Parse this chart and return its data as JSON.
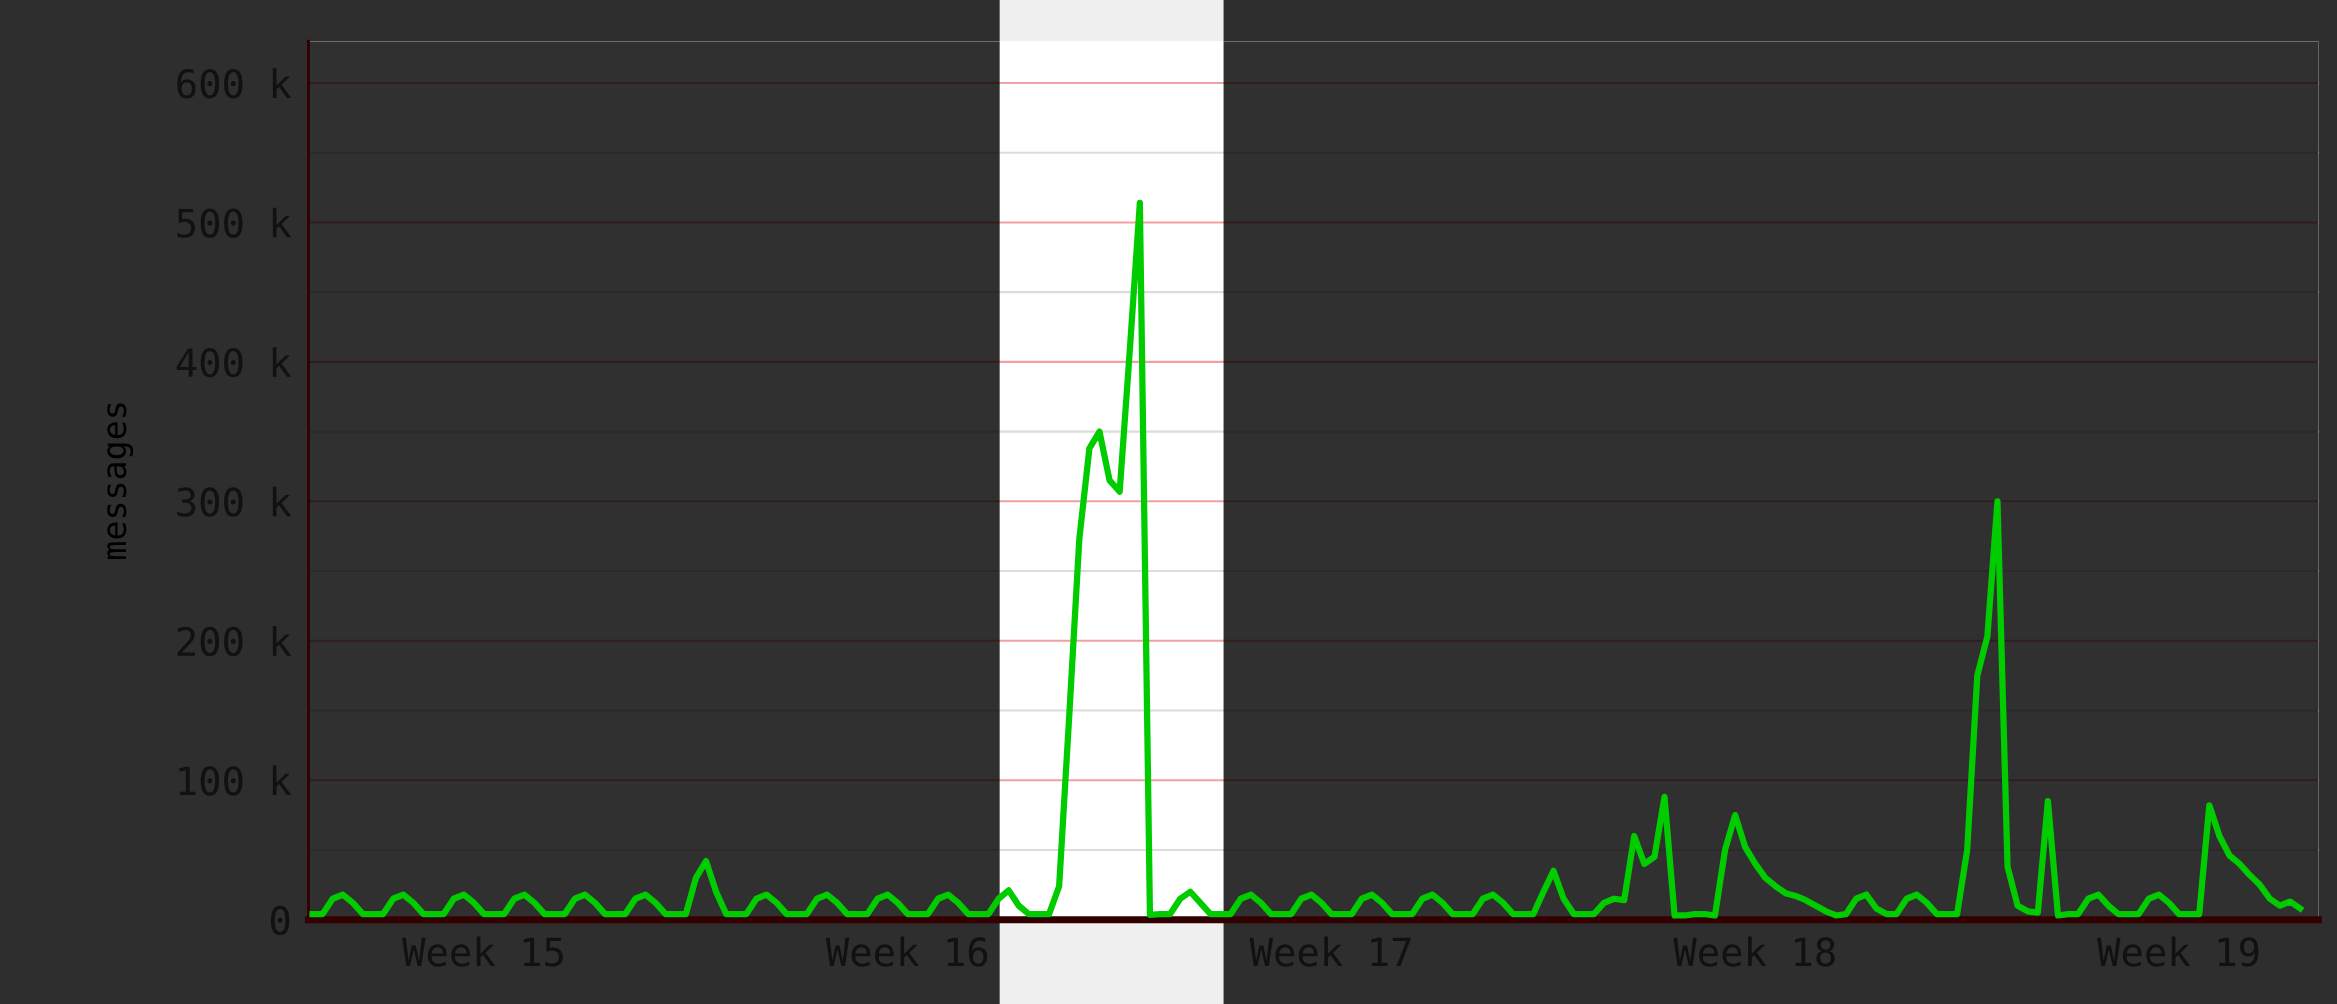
{
  "chart_data": {
    "type": "line",
    "ylabel": "messages",
    "categories": [
      null,
      null,
      null,
      null,
      null,
      null,
      null,
      null,
      null,
      null,
      null,
      null,
      null,
      null,
      null,
      null,
      null,
      "Week 15",
      null,
      null,
      null,
      null,
      null,
      null,
      null,
      null,
      null,
      null,
      null,
      null,
      null,
      null,
      null,
      null,
      null,
      null,
      null,
      null,
      null,
      null,
      null,
      null,
      null,
      null,
      null,
      null,
      null,
      null,
      null,
      null,
      null,
      null,
      null,
      null,
      null,
      null,
      null,
      null,
      null,
      "Week 16",
      null,
      null,
      null,
      null,
      null,
      null,
      null,
      null,
      null,
      null,
      null,
      null,
      null,
      null,
      null,
      null,
      null,
      null,
      null,
      null,
      null,
      null,
      null,
      null,
      null,
      null,
      null,
      null,
      null,
      null,
      null,
      null,
      null,
      null,
      null,
      null,
      null,
      null,
      null,
      null,
      null,
      "Week 17",
      null,
      null,
      null,
      null,
      null,
      null,
      null,
      null,
      null,
      null,
      null,
      null,
      null,
      null,
      null,
      null,
      null,
      null,
      null,
      null,
      null,
      null,
      null,
      null,
      null,
      null,
      null,
      null,
      null,
      null,
      null,
      null,
      null,
      null,
      null,
      null,
      null,
      null,
      null,
      null,
      null,
      "Week 18",
      null,
      null,
      null,
      null,
      null,
      null,
      null,
      null,
      null,
      null,
      null,
      null,
      null,
      null,
      null,
      null,
      null,
      null,
      null,
      null,
      null,
      null,
      null,
      null,
      null,
      null,
      null,
      null,
      null,
      null,
      null,
      null,
      null,
      null,
      null,
      null,
      null,
      null,
      null,
      null,
      null,
      "Week 19",
      null,
      null,
      null,
      null,
      null,
      null,
      null,
      null,
      null,
      null,
      null,
      null
    ],
    "series": [
      {
        "color": "#00cc00",
        "values": [
          4000,
          4000,
          15000,
          18000,
          12000,
          4000,
          4000,
          4000,
          15000,
          18000,
          12000,
          4000,
          4000,
          4000,
          15000,
          18000,
          12000,
          4000,
          4000,
          4000,
          15000,
          18000,
          12000,
          4000,
          4000,
          4000,
          15000,
          18000,
          12000,
          4000,
          4000,
          4000,
          15000,
          18000,
          12000,
          4000,
          4000,
          4000,
          30000,
          42000,
          20000,
          4000,
          4000,
          4000,
          15000,
          18000,
          12000,
          4000,
          4000,
          4000,
          15000,
          18000,
          12000,
          4000,
          4000,
          4000,
          15000,
          18000,
          12000,
          4000,
          4000,
          4000,
          15000,
          18000,
          12000,
          4000,
          4000,
          4000,
          15000,
          21000,
          10000,
          4000,
          4000,
          4000,
          24000,
          146000,
          273000,
          338000,
          350000,
          315000,
          307000,
          408000,
          514000,
          3500,
          4000,
          4000,
          15000,
          20000,
          12000,
          4000,
          4000,
          4000,
          15000,
          18000,
          12000,
          4000,
          4000,
          4000,
          15000,
          18000,
          12000,
          4000,
          4000,
          4000,
          15000,
          18000,
          12000,
          4000,
          4000,
          4000,
          15000,
          18000,
          12000,
          4000,
          4000,
          4000,
          15000,
          18000,
          12000,
          4000,
          4000,
          4000,
          20000,
          35000,
          15000,
          4000,
          4000,
          4000,
          12000,
          15000,
          14000,
          60000,
          40000,
          45000,
          88000,
          3000,
          3000,
          4000,
          4000,
          3000,
          50000,
          75000,
          52000,
          40000,
          30000,
          24000,
          19000,
          17000,
          14000,
          10000,
          6000,
          3000,
          4000,
          15000,
          18000,
          8000,
          4000,
          4000,
          15000,
          18000,
          12000,
          4000,
          4000,
          4000,
          50000,
          175000,
          203000,
          300000,
          38000,
          10000,
          6000,
          5000,
          85000,
          3000,
          4000,
          4000,
          15000,
          18000,
          10000,
          4000,
          4000,
          4000,
          15000,
          18000,
          12000,
          4000,
          4000,
          4000,
          82000,
          60000,
          46000,
          40000,
          32000,
          25000,
          15000,
          10000,
          13000,
          8000
        ]
      }
    ],
    "ylim": [
      0,
      630000
    ],
    "yticks": [
      {
        "value": 0,
        "label": "0"
      },
      {
        "value": 50000,
        "label": null
      },
      {
        "value": 100000,
        "label": "100 k"
      },
      {
        "value": 150000,
        "label": null
      },
      {
        "value": 200000,
        "label": "200 k"
      },
      {
        "value": 250000,
        "label": null
      },
      {
        "value": 300000,
        "label": "300 k"
      },
      {
        "value": 350000,
        "label": null
      },
      {
        "value": 400000,
        "label": "400 k"
      },
      {
        "value": 450000,
        "label": null
      },
      {
        "value": 500000,
        "label": "500 k"
      },
      {
        "value": 550000,
        "label": null
      },
      {
        "value": 600000,
        "label": "600 k"
      }
    ],
    "grid": "y"
  }
}
